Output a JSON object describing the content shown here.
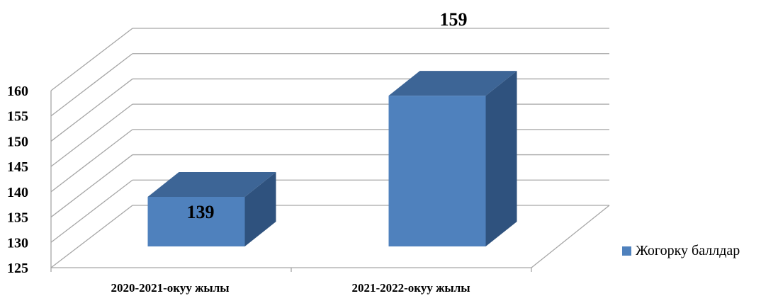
{
  "chart_data": {
    "type": "bar",
    "categories": [
      "2020-2021-окуу жылы",
      "2021-2022-окуу жылы"
    ],
    "series": [
      {
        "name": "Жогорку баллдар",
        "values": [
          139,
          159
        ]
      }
    ],
    "data_labels": [
      "139",
      "159"
    ],
    "ylim": [
      125,
      160
    ],
    "yticks": [
      {
        "value": 125,
        "label": "125"
      },
      {
        "value": 130,
        "label": "130"
      },
      {
        "value": 135,
        "label": "135"
      },
      {
        "value": 140,
        "label": "140"
      },
      {
        "value": 145,
        "label": "145"
      },
      {
        "value": 150,
        "label": "150"
      },
      {
        "value": 155,
        "label": "155"
      },
      {
        "value": 160,
        "label": "160"
      }
    ],
    "grid": true,
    "three_d": true,
    "legend_position": "right",
    "colors": {
      "front": "#4F81BD",
      "top": "#3D6596",
      "side": "#2F527E",
      "grid": "#A6A6A6"
    }
  }
}
